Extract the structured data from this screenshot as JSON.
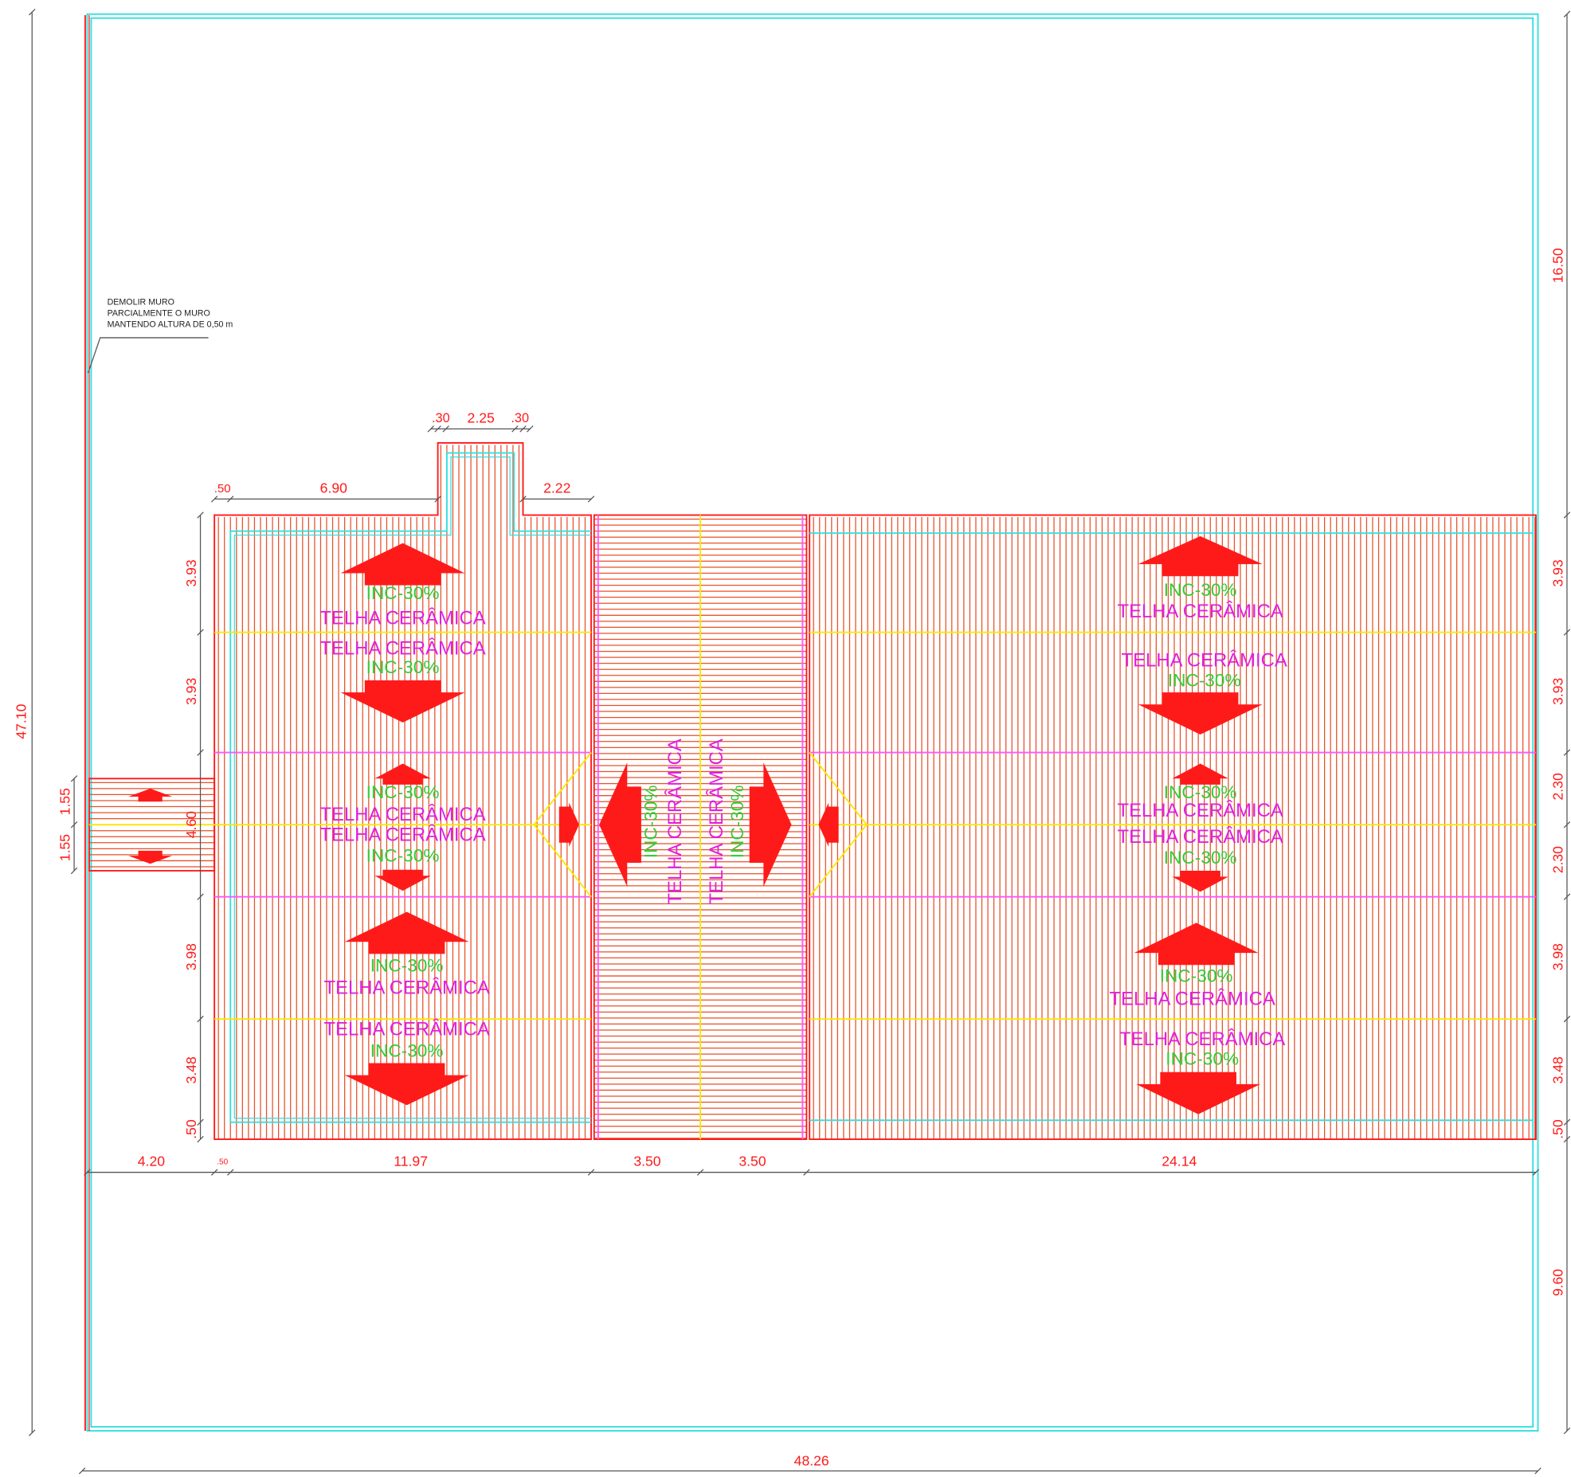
{
  "annotation": {
    "lines": [
      "DEMOLIR MURO",
      "PARCIALMENTE O MURO",
      "MANTENDO ALTURA DE 0,50 m"
    ]
  },
  "dimensions": {
    "overall_height": "47.10",
    "overall_width": "48.26",
    "right": [
      "16.50",
      "3.93",
      "3.93",
      "2.30",
      "2.30",
      "3.98",
      "3.48",
      ".50",
      "9.60"
    ],
    "left": [
      "3.93",
      "3.93",
      "4.60",
      "3.98",
      "3.48",
      ".50"
    ],
    "porch": [
      "1.55",
      "1.55"
    ],
    "top": [
      ".50",
      "6.90",
      "2.22"
    ],
    "bump": [
      ".30",
      "2.25",
      ".30"
    ],
    "bottom": [
      "4.20",
      ".50",
      "11.97",
      "3.50",
      "3.50",
      "24.14"
    ]
  },
  "roof_notes": [
    {
      "slope": "INC-30%",
      "material": "TELHA CERÂMICA"
    },
    {
      "slope": "INC-30%",
      "material": "TELHA CERÂMICA"
    },
    {
      "slope": "INC-30%",
      "material": "TELHA CERÂMICA"
    },
    {
      "slope": "INC-30%",
      "material": "TELHA CERÂMICA"
    },
    {
      "slope": "INC-30%",
      "material": "TELHA CERÂMICA"
    },
    {
      "slope": "INC-30%",
      "material": "TELHA CERÂMICA"
    },
    {
      "slope": "INC-30%",
      "material": "TELHA CERÂMICA"
    },
    {
      "slope": "INC-30%",
      "material": "TELHA CERÂMICA"
    },
    {
      "slope": "INC-30%",
      "material": "TELHA CERÂMICA"
    },
    {
      "slope": "INC-30%",
      "material": "TELHA CERÂMICA"
    },
    {
      "slope": "INC-30%",
      "material": "TELHA CERÂMICA"
    },
    {
      "slope": "INC-30%",
      "material": "TELHA CERÂMICA"
    },
    {
      "slope": "INC-30%",
      "material": "TELHA CERÂMICA"
    },
    {
      "slope": "INC-30%",
      "material": "TELHA CERÂMICA"
    }
  ]
}
